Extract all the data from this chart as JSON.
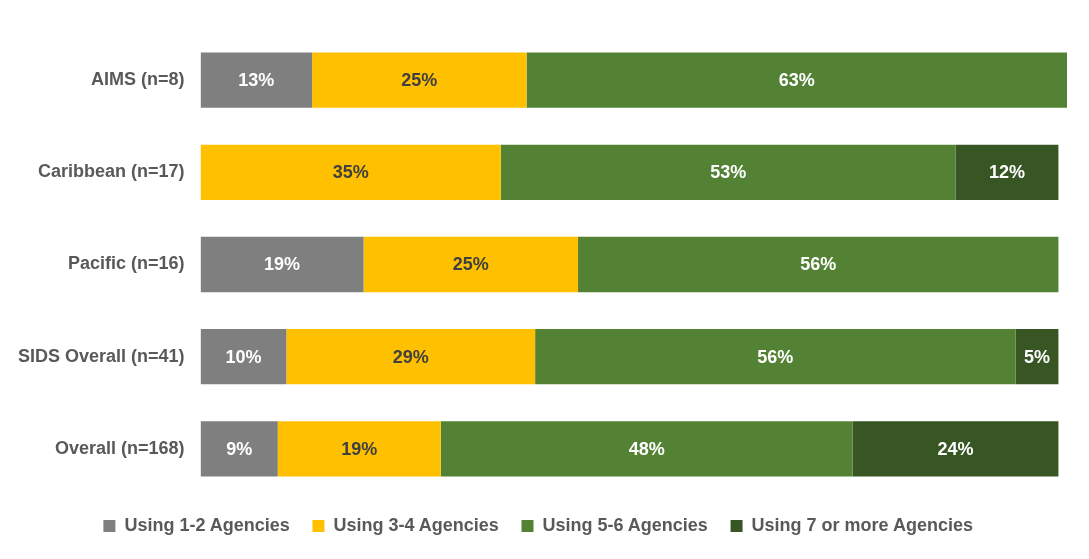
{
  "chart_data": {
    "type": "bar",
    "orientation": "horizontal",
    "stacked": true,
    "legend": "bottom",
    "tick_labels": "y",
    "categories": [
      "AIMS (n=8)",
      "Caribbean (n=17)",
      "Pacific (n=16)",
      "SIDS Overall (n=41)",
      "Overall (n=168)"
    ],
    "series": [
      {
        "name": "Using 1-2 Agencies",
        "color": "#7f7f7f",
        "values": [
          13,
          null,
          19,
          10,
          9
        ],
        "value_labels": [
          "13%",
          null,
          "19%",
          "10%",
          "9%"
        ]
      },
      {
        "name": "Using 3-4 Agencies",
        "color": "#ffc000",
        "values": [
          25,
          35,
          25,
          29,
          19
        ],
        "value_labels": [
          "25%",
          "35%",
          "25%",
          "29%",
          "19%"
        ]
      },
      {
        "name": "Using 5-6 Agencies",
        "color": "#548235",
        "values": [
          63,
          53,
          56,
          56,
          48
        ],
        "value_labels": [
          "63%",
          "53%",
          "56%",
          "56%",
          "48%"
        ]
      },
      {
        "name": "Using 7 or more Agencies",
        "color": "#375623",
        "values": [
          null,
          12,
          null,
          5,
          24
        ],
        "value_labels": [
          null,
          "12%",
          null,
          "5%",
          "24%"
        ]
      }
    ]
  }
}
